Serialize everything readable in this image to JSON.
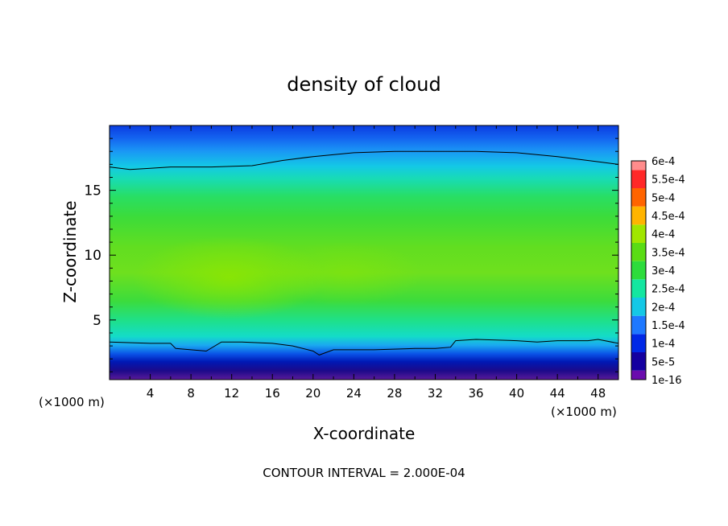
{
  "chart_data": {
    "type": "heatmap",
    "title": "density of cloud",
    "xlabel": "X-coordinate",
    "ylabel": "Z-coordinate",
    "x_unit": "(×1000 m)",
    "xlim": [
      0,
      50
    ],
    "ylim": [
      0.4,
      20
    ],
    "x_ticks": [
      4,
      8,
      12,
      16,
      20,
      24,
      28,
      32,
      36,
      40,
      44,
      48
    ],
    "y_ticks": [
      5,
      10,
      15
    ],
    "grid": false,
    "footer": "CONTOUR INTERVAL = 2.000E-04",
    "colorbar": {
      "position": "right",
      "levels": [
        {
          "label": "1e-16",
          "color": "#6a0dad"
        },
        {
          "label": "5e-5",
          "color": "#1400a0"
        },
        {
          "label": "1e-4",
          "color": "#0028e6"
        },
        {
          "label": "1.5e-4",
          "color": "#1e78ff"
        },
        {
          "label": "2e-4",
          "color": "#14c8e6"
        },
        {
          "label": "2.5e-4",
          "color": "#14e6a0"
        },
        {
          "label": "3e-4",
          "color": "#2ddc3c"
        },
        {
          "label": "3.5e-4",
          "color": "#5adc14"
        },
        {
          "label": "4e-4",
          "color": "#a0e600"
        },
        {
          "label": "4.5e-4",
          "color": "#ffb400"
        },
        {
          "label": "5e-4",
          "color": "#ff6400"
        },
        {
          "label": "5.5e-4",
          "color": "#ff2828"
        },
        {
          "label": "6e-4",
          "color": "#ff8c8c"
        }
      ]
    },
    "contour_lines": [
      {
        "level": "2e-4 (upper)",
        "points": [
          [
            0,
            16.8
          ],
          [
            2,
            16.6
          ],
          [
            4,
            16.7
          ],
          [
            6,
            16.8
          ],
          [
            10,
            16.8
          ],
          [
            14,
            16.9
          ],
          [
            17,
            17.3
          ],
          [
            20,
            17.6
          ],
          [
            24,
            17.9
          ],
          [
            28,
            18.0
          ],
          [
            32,
            18.0
          ],
          [
            36,
            18.0
          ],
          [
            40,
            17.9
          ],
          [
            44,
            17.6
          ],
          [
            48,
            17.2
          ],
          [
            50,
            17.0
          ]
        ]
      },
      {
        "level": "2e-4 (lower)",
        "points": [
          [
            0,
            3.3
          ],
          [
            4,
            3.2
          ],
          [
            6,
            3.2
          ],
          [
            6.5,
            2.8
          ],
          [
            8,
            2.7
          ],
          [
            9.5,
            2.6
          ],
          [
            11,
            3.3
          ],
          [
            13,
            3.3
          ],
          [
            16,
            3.2
          ],
          [
            18,
            3.0
          ],
          [
            20,
            2.6
          ],
          [
            20.6,
            2.3
          ],
          [
            22,
            2.7
          ],
          [
            26,
            2.7
          ],
          [
            30,
            2.8
          ],
          [
            32,
            2.8
          ],
          [
            33.5,
            2.9
          ],
          [
            34,
            3.4
          ],
          [
            36,
            3.5
          ],
          [
            40,
            3.4
          ],
          [
            42,
            3.3
          ],
          [
            44,
            3.4
          ],
          [
            47,
            3.4
          ],
          [
            48,
            3.5
          ],
          [
            50,
            3.2
          ]
        ]
      }
    ]
  }
}
